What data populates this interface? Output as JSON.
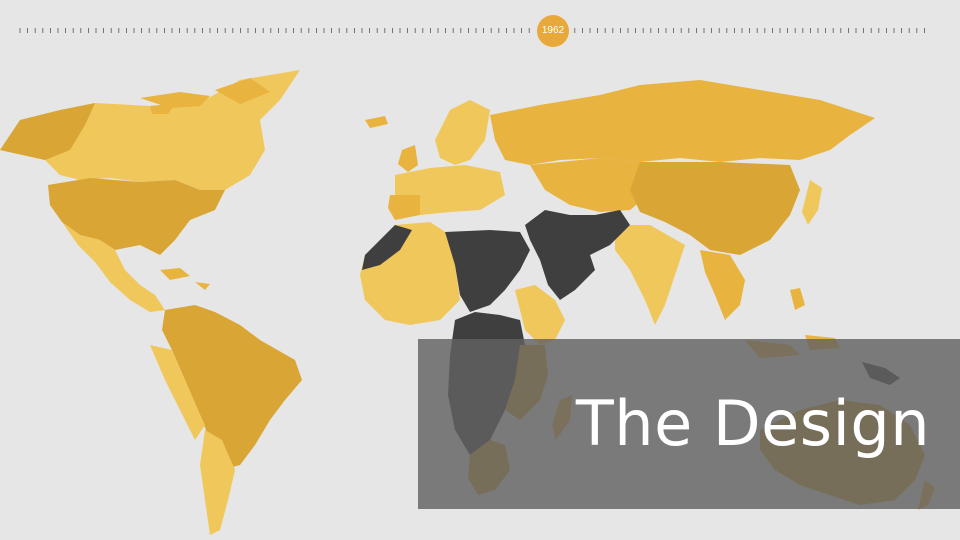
{
  "timeline": {
    "current_year": "1962"
  },
  "title": {
    "text": "The Design"
  },
  "colors": {
    "background": "#e6e6e6",
    "land_light": "#f0c75a",
    "land_mid": "#e8b33e",
    "land_dark": "#d9a534",
    "highlight": "#3f3f3f",
    "accent": "#e9a93a",
    "overlay": "#626262"
  }
}
